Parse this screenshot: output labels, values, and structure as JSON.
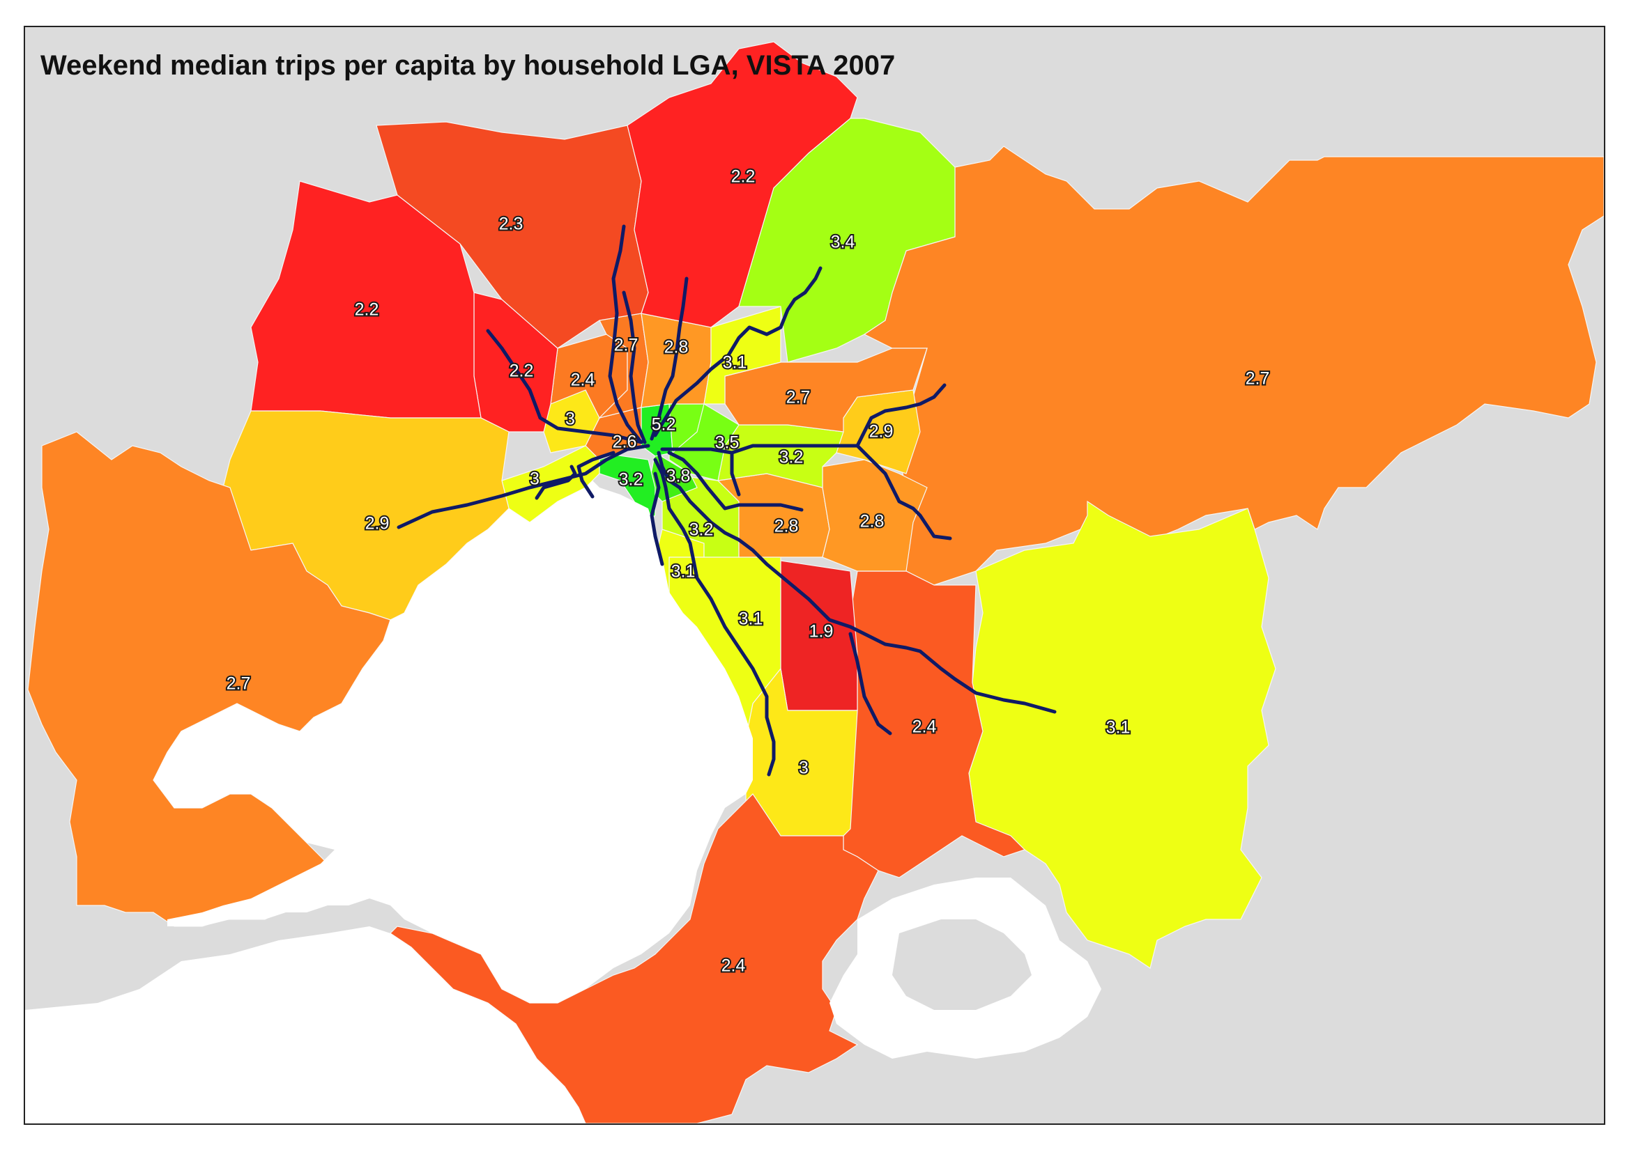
{
  "title": "Weekend median trips per capita by household LGA, VISTA 2007",
  "colors": {
    "background": "#dcdcdc",
    "water": "#ffffff",
    "rail": "#0f1a66",
    "value_1_9": "#ee2424",
    "value_2_2": "#ff2222",
    "value_2_3": "#f44a22",
    "value_2_4": "#fb5a22",
    "value_2_6": "#fc7a22",
    "value_2_7": "#fe8524",
    "value_2_8": "#ff9824",
    "value_2_9": "#ffcc1a",
    "value_3": "#fde818",
    "value_3_1": "#eeff14",
    "value_3_2": "#c8ff14",
    "value_3_4": "#a4ff14",
    "value_3_5": "#78ff14",
    "value_3_8": "#44ee14",
    "value_5_2": "#22ee22"
  },
  "lga_labels": [
    {
      "name": "lga-value-top-north",
      "value": "2.2"
    },
    {
      "name": "lga-value-north-west",
      "value": "2.3"
    },
    {
      "name": "lga-value-melton",
      "value": "2.2"
    },
    {
      "name": "lga-value-north-east",
      "value": "3.4"
    },
    {
      "name": "lga-value-yarra-ranges",
      "value": "2.7"
    },
    {
      "name": "lga-value-inner-north-1",
      "value": "2.7"
    },
    {
      "name": "lga-value-inner-north-2",
      "value": "2.8"
    },
    {
      "name": "lga-value-inner-north-3",
      "value": "3.1"
    },
    {
      "name": "lga-value-brimbank",
      "value": "2.2"
    },
    {
      "name": "lga-value-moonee",
      "value": "2.4"
    },
    {
      "name": "lga-value-manningham",
      "value": "2.7"
    },
    {
      "name": "lga-value-maribyrnong",
      "value": "3"
    },
    {
      "name": "lga-value-melbourne",
      "value": "5.2"
    },
    {
      "name": "lga-value-maroondah",
      "value": "2.9"
    },
    {
      "name": "lga-value-melbourne-west",
      "value": "2.6"
    },
    {
      "name": "lga-value-boroondara",
      "value": "3.5"
    },
    {
      "name": "lga-value-whitehorse",
      "value": "3.2"
    },
    {
      "name": "lga-value-hobsons-bay",
      "value": "3"
    },
    {
      "name": "lga-value-port-phillip",
      "value": "3.2"
    },
    {
      "name": "lga-value-stonnington",
      "value": "3.8"
    },
    {
      "name": "lga-value-wyndham",
      "value": "2.9"
    },
    {
      "name": "lga-value-glen-eira",
      "value": "3.2"
    },
    {
      "name": "lga-value-monash",
      "value": "2.8"
    },
    {
      "name": "lga-value-knox",
      "value": "2.8"
    },
    {
      "name": "lga-value-bayside",
      "value": "3.1"
    },
    {
      "name": "lga-value-kingston",
      "value": "3.1"
    },
    {
      "name": "lga-value-dandenong",
      "value": "1.9"
    },
    {
      "name": "lga-value-geelong",
      "value": "2.7"
    },
    {
      "name": "lga-value-casey",
      "value": "2.4"
    },
    {
      "name": "lga-value-cardinia",
      "value": "3.1"
    },
    {
      "name": "lga-value-frankston",
      "value": "3"
    },
    {
      "name": "lga-value-mornington",
      "value": "2.4"
    }
  ]
}
